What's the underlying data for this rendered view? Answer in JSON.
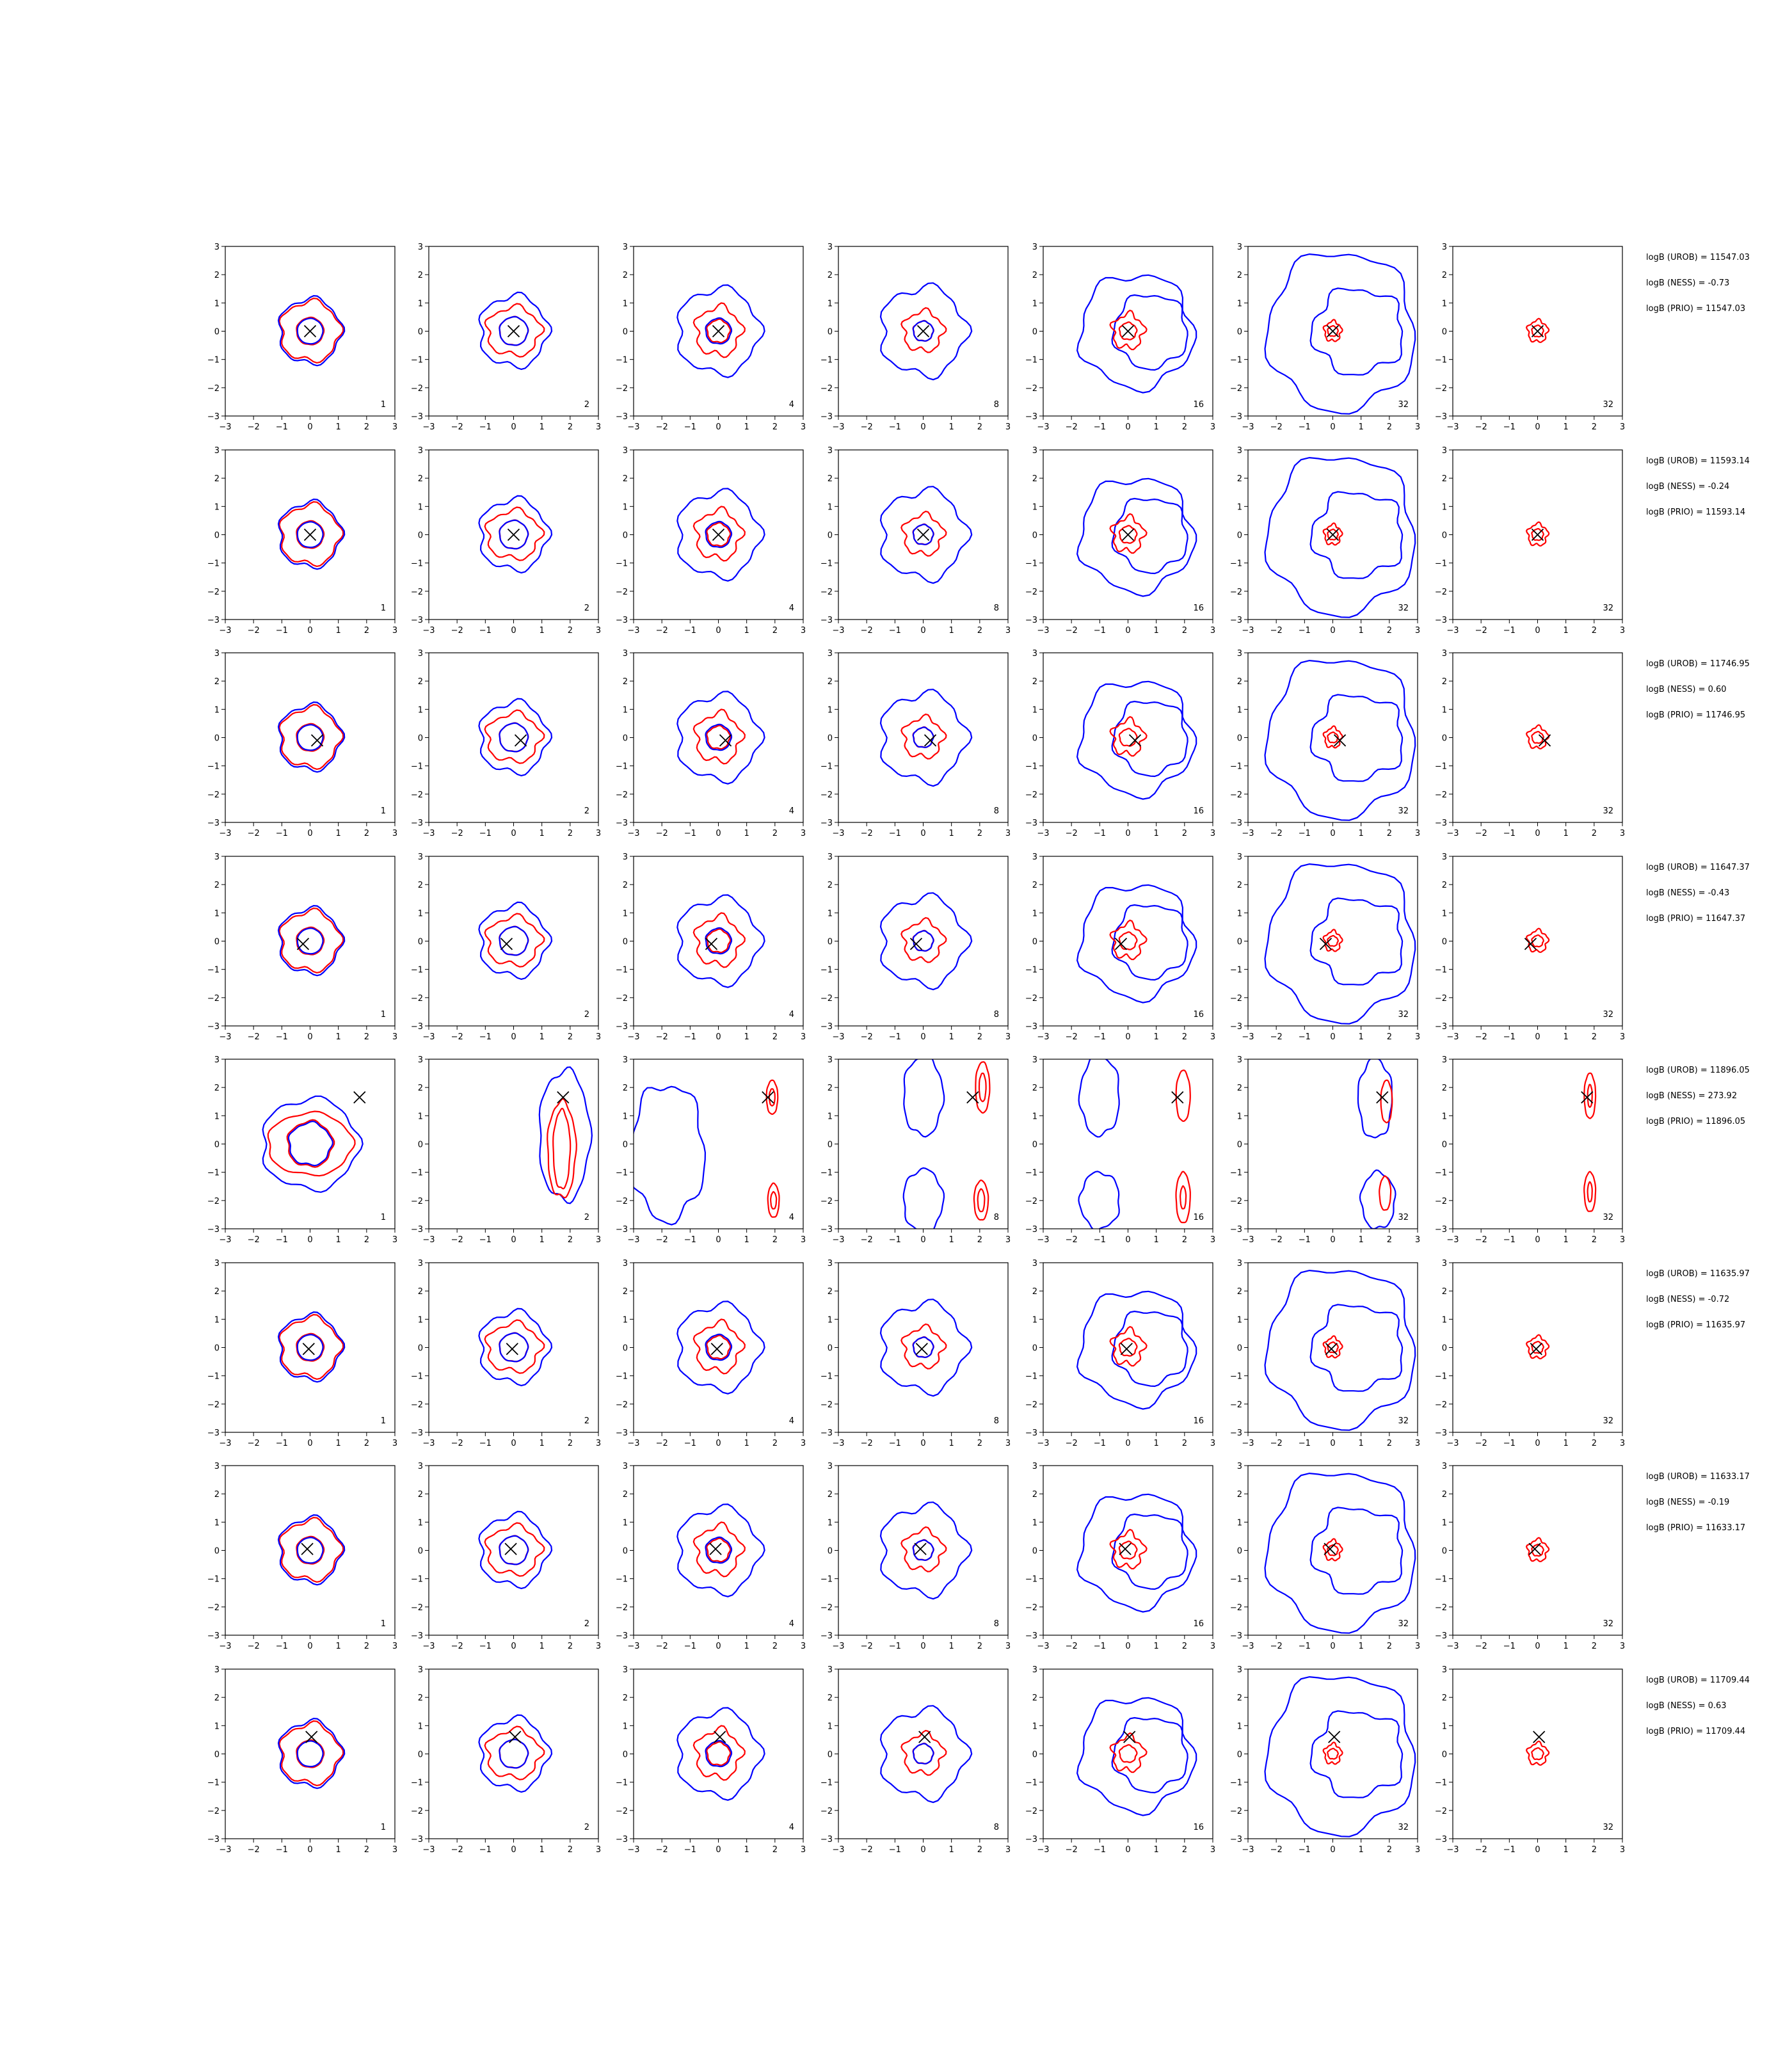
{
  "figure": {
    "axis_ticks": [
      "−3",
      "−2",
      "−1",
      "0",
      "1",
      "2",
      "3"
    ],
    "axis_range": [
      -3,
      3
    ],
    "grid": false,
    "colors": {
      "red": "#ff0000",
      "blue": "#0000ff",
      "marker": "#000000"
    },
    "column_labels": [
      "1",
      "2",
      "4",
      "8",
      "16",
      "32",
      "32"
    ]
  },
  "chart_data": [
    {
      "type": "contour",
      "rows": 8,
      "cols": 7
    },
    {
      "row": 1,
      "marker": [
        0.0,
        0.0
      ],
      "annotations": [
        "logB (UROB) = 11547.03",
        "logB (NESS) = -0.73",
        "logB (PRIO) = 11547.03"
      ]
    },
    {
      "row": 2,
      "marker": [
        0.0,
        0.0
      ],
      "annotations": [
        "logB (UROB) = 11593.14",
        "logB (NESS) = -0.24",
        "logB (PRIO) = 11593.14"
      ]
    },
    {
      "row": 3,
      "marker": [
        0.25,
        -0.1
      ],
      "annotations": [
        "logB (UROB) = 11746.95",
        "logB (NESS) = 0.60",
        "logB (PRIO) = 11746.95"
      ]
    },
    {
      "row": 4,
      "marker": [
        -0.25,
        -0.1
      ],
      "annotations": [
        "logB (UROB) = 11647.37",
        "logB (NESS) = -0.43",
        "logB (PRIO) = 11647.37"
      ]
    },
    {
      "row": 5,
      "marker": [
        1.75,
        1.65
      ],
      "annotations": [
        "logB (UROB) = 11896.05",
        "logB (NESS) = 273.92",
        "logB (PRIO) = 11896.05"
      ]
    },
    {
      "row": 6,
      "marker": [
        -0.05,
        -0.05
      ],
      "annotations": [
        "logB (UROB) = 11635.97",
        "logB (NESS) = -0.72",
        "logB (PRIO) = 11635.97"
      ]
    },
    {
      "row": 7,
      "marker": [
        -0.1,
        0.05
      ],
      "annotations": [
        "logB (UROB) = 11633.17",
        "logB (NESS) = -0.19",
        "logB (PRIO) = 11633.17"
      ]
    },
    {
      "row": 8,
      "marker": [
        0.05,
        0.6
      ],
      "annotations": [
        "logB (UROB) = 11709.44",
        "logB (NESS) = 0.63",
        "logB (PRIO) = 11709.44"
      ]
    }
  ]
}
